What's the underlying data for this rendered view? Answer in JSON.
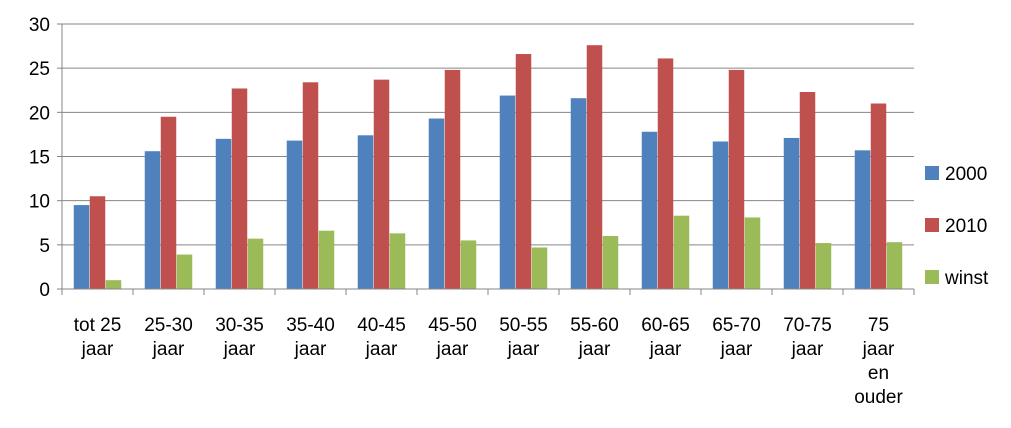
{
  "chart_data": {
    "type": "bar",
    "title": "",
    "xlabel": "",
    "ylabel": "",
    "ylim": [
      0,
      30
    ],
    "yticks": [
      0,
      5,
      10,
      15,
      20,
      25,
      30
    ],
    "grid": true,
    "legend_position": "right",
    "categories": [
      "tot 25 jaar",
      "25-30 jaar",
      "30-35 jaar",
      "35-40 jaar",
      "40-45 jaar",
      "45-50 jaar",
      "50-55 jaar",
      "55-60 jaar",
      "60-65 jaar",
      "65-70 jaar",
      "70-75 jaar",
      "75 jaar en ouder"
    ],
    "category_label_lines": [
      [
        "tot 25",
        "jaar"
      ],
      [
        "25-30",
        "jaar"
      ],
      [
        "30-35",
        "jaar"
      ],
      [
        "35-40",
        "jaar"
      ],
      [
        "40-45",
        "jaar"
      ],
      [
        "45-50",
        "jaar"
      ],
      [
        "50-55",
        "jaar"
      ],
      [
        "55-60",
        "jaar"
      ],
      [
        "60-65",
        "jaar"
      ],
      [
        "65-70",
        "jaar"
      ],
      [
        "70-75",
        "jaar"
      ],
      [
        "75",
        "jaar",
        "en",
        "ouder"
      ]
    ],
    "series": [
      {
        "name": "2000",
        "color": "#4F81BD",
        "values": [
          9.5,
          15.6,
          17.0,
          16.8,
          17.4,
          19.3,
          21.9,
          21.6,
          17.8,
          16.7,
          17.1,
          15.7
        ]
      },
      {
        "name": "2010",
        "color": "#C0504D",
        "values": [
          10.5,
          19.5,
          22.7,
          23.4,
          23.7,
          24.8,
          26.6,
          27.6,
          26.1,
          24.8,
          22.3,
          21.0
        ]
      },
      {
        "name": "winst",
        "color": "#9BBB59",
        "values": [
          1.0,
          3.9,
          5.7,
          6.6,
          6.3,
          5.5,
          4.7,
          6.0,
          8.3,
          8.1,
          5.2,
          5.3
        ]
      }
    ]
  }
}
